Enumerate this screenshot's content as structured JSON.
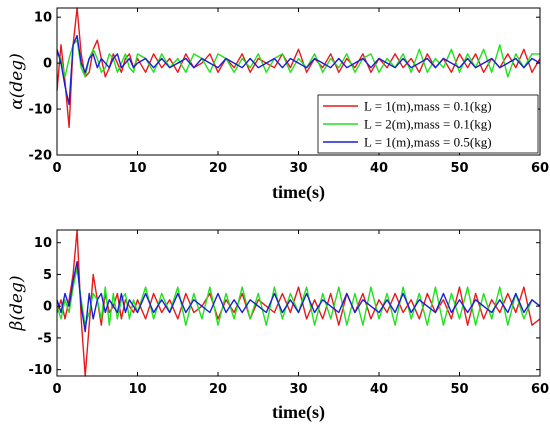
{
  "chart_data": [
    {
      "type": "line",
      "ylabel": "α(deg)",
      "xlabel": "time(s)",
      "xlim": [
        0,
        60
      ],
      "ylim": [
        -20,
        12
      ],
      "xticks": [
        0,
        10,
        20,
        30,
        40,
        50,
        60
      ],
      "yticks": [
        -20,
        -10,
        0,
        10
      ],
      "legend_position": "inside-lower-right",
      "grid": false,
      "series": [
        {
          "name": "L = 1(m),mass = 0.1(kg)",
          "color": "#e8191b",
          "x": [
            0,
            0.5,
            1,
            1.5,
            2,
            2.5,
            3,
            3.5,
            4,
            4.5,
            5,
            5.5,
            6,
            6.5,
            7,
            7.5,
            8,
            8.5,
            9,
            9.5,
            10,
            11,
            12,
            13,
            14,
            15,
            16,
            17,
            18,
            19,
            20,
            21,
            22,
            23,
            24,
            25,
            26,
            27,
            28,
            29,
            30,
            31,
            32,
            33,
            34,
            35,
            36,
            37,
            38,
            39,
            40,
            41,
            42,
            43,
            44,
            45,
            46,
            47,
            48,
            49,
            50,
            51,
            52,
            53,
            54,
            55,
            56,
            57,
            58,
            59,
            60
          ],
          "y": [
            -6,
            4,
            -4,
            -14,
            4,
            12,
            2,
            -3,
            -2,
            3,
            5,
            1,
            -3,
            -1,
            2,
            0,
            -2,
            1,
            2,
            -1,
            1,
            -2,
            2,
            -1,
            1,
            -2,
            2,
            -1,
            0,
            2,
            -2,
            1,
            -1,
            2,
            -2,
            1,
            0,
            -1,
            2,
            -1,
            3,
            -2,
            1,
            -1,
            2,
            -2,
            1,
            -1,
            2,
            -2,
            1,
            -1,
            2,
            -1,
            1,
            -2,
            2,
            -1,
            1,
            -2,
            2,
            -1,
            2,
            -2,
            1,
            -1,
            2,
            -1,
            3,
            -2,
            1
          ]
        },
        {
          "name": "L = 2(m),mass = 0.1(kg)",
          "color": "#22e01e",
          "x": [
            0,
            0.5,
            1,
            1.5,
            2,
            2.5,
            3,
            3.5,
            4,
            4.5,
            5,
            5.5,
            6,
            6.5,
            7,
            7.5,
            8,
            8.5,
            9,
            9.5,
            10,
            11,
            12,
            13,
            14,
            15,
            16,
            17,
            18,
            19,
            20,
            21,
            22,
            23,
            24,
            25,
            26,
            27,
            28,
            29,
            30,
            31,
            32,
            33,
            34,
            35,
            36,
            37,
            38,
            39,
            40,
            41,
            42,
            43,
            44,
            45,
            46,
            47,
            48,
            49,
            50,
            51,
            52,
            53,
            54,
            55,
            56,
            57,
            58,
            59,
            60
          ],
          "y": [
            2,
            1,
            -3,
            1,
            4,
            5,
            -1,
            -3,
            1,
            3,
            1,
            -2,
            -1,
            2,
            1,
            -2,
            0,
            2,
            -1,
            -2,
            2,
            1,
            -2,
            2,
            -1,
            1,
            -2,
            2,
            1,
            -2,
            2,
            1,
            -2,
            1,
            -1,
            2,
            -2,
            1,
            2,
            -2,
            1,
            -1,
            2,
            -2,
            1,
            -1,
            2,
            -2,
            1,
            2,
            -2,
            1,
            -1,
            2,
            -2,
            3,
            -2,
            1,
            -1,
            3,
            -2,
            2,
            -1,
            3,
            -2,
            4,
            -3,
            2,
            -1,
            2,
            2
          ]
        },
        {
          "name": "L = 1(m),mass = 0.5(kg)",
          "color": "#1a1fd6",
          "x": [
            0,
            0.5,
            1,
            1.5,
            2,
            2.5,
            3,
            3.5,
            4,
            4.5,
            5,
            5.5,
            6,
            6.5,
            7,
            7.5,
            8,
            8.5,
            9,
            9.5,
            10,
            11,
            12,
            13,
            14,
            15,
            16,
            17,
            18,
            19,
            20,
            21,
            22,
            23,
            24,
            25,
            26,
            27,
            28,
            29,
            30,
            31,
            32,
            33,
            34,
            35,
            36,
            37,
            38,
            39,
            40,
            41,
            42,
            43,
            44,
            45,
            46,
            47,
            48,
            49,
            50,
            51,
            52,
            53,
            54,
            55,
            56,
            57,
            58,
            59,
            60
          ],
          "y": [
            3,
            0,
            -5,
            -9,
            4,
            6,
            0,
            -2,
            1,
            2,
            -1,
            1,
            0,
            -1,
            1,
            2,
            -1,
            0,
            1,
            -1,
            0,
            1,
            -1,
            1,
            -1,
            0,
            1,
            -1,
            1,
            0,
            -1,
            1,
            0,
            -1,
            1,
            -1,
            0,
            1,
            -1,
            1,
            0,
            -1,
            1,
            0,
            -1,
            1,
            -1,
            0,
            1,
            -1,
            1,
            0,
            -1,
            1,
            -1,
            0,
            1,
            -1,
            1,
            0,
            -1,
            1,
            -1,
            0,
            1,
            -1,
            0,
            1,
            -1,
            1,
            0
          ]
        }
      ]
    },
    {
      "type": "line",
      "ylabel": "β(deg)",
      "xlabel": "time(s)",
      "xlim": [
        0,
        60
      ],
      "ylim": [
        -11,
        12
      ],
      "xticks": [
        0,
        10,
        20,
        30,
        40,
        50,
        60
      ],
      "yticks": [
        -10,
        -5,
        0,
        5,
        10
      ],
      "grid": false,
      "series": [
        {
          "name": "L = 1(m),mass = 0.1(kg)",
          "color": "#e8191b",
          "x": [
            0,
            0.5,
            1,
            1.5,
            2,
            2.5,
            3,
            3.5,
            4,
            4.5,
            5,
            5.5,
            6,
            6.5,
            7,
            7.5,
            8,
            8.5,
            9,
            9.5,
            10,
            11,
            12,
            13,
            14,
            15,
            16,
            17,
            18,
            19,
            20,
            21,
            22,
            23,
            24,
            25,
            26,
            27,
            28,
            29,
            30,
            31,
            32,
            33,
            34,
            35,
            36,
            37,
            38,
            39,
            40,
            41,
            42,
            43,
            44,
            45,
            46,
            47,
            48,
            49,
            50,
            51,
            52,
            53,
            54,
            55,
            56,
            57,
            58,
            59,
            60
          ],
          "y": [
            -1,
            1,
            -2,
            1,
            5,
            12,
            -2,
            -11,
            -3,
            5,
            1,
            -3,
            2,
            -1,
            0,
            2,
            -2,
            1,
            0,
            -1,
            1,
            -2,
            2,
            -1,
            1,
            -2,
            2,
            -1,
            0,
            2,
            -2,
            1,
            -1,
            2,
            -2,
            1,
            0,
            -1,
            2,
            -1,
            3,
            -2,
            1,
            -2,
            2,
            -3,
            2,
            -1,
            2,
            -2,
            1,
            -1,
            2,
            -1,
            1,
            -2,
            2,
            -1,
            1,
            -2,
            3,
            -3,
            2,
            -2,
            1,
            -1,
            2,
            -1,
            3,
            -3,
            -2
          ]
        },
        {
          "name": "L = 2(m),mass = 0.1(kg)",
          "color": "#22e01e",
          "x": [
            0,
            0.5,
            1,
            1.5,
            2,
            2.5,
            3,
            3.5,
            4,
            4.5,
            5,
            5.5,
            6,
            6.5,
            7,
            7.5,
            8,
            8.5,
            9,
            9.5,
            10,
            11,
            12,
            13,
            14,
            15,
            16,
            17,
            18,
            19,
            20,
            21,
            22,
            23,
            24,
            25,
            26,
            27,
            28,
            29,
            30,
            31,
            32,
            33,
            34,
            35,
            36,
            37,
            38,
            39,
            40,
            41,
            42,
            43,
            44,
            45,
            46,
            47,
            48,
            49,
            50,
            51,
            52,
            53,
            54,
            55,
            56,
            57,
            58,
            59,
            60
          ],
          "y": [
            0,
            -2,
            1,
            -1,
            3,
            6,
            1,
            -3,
            -1,
            2,
            1,
            -2,
            3,
            -3,
            2,
            -2,
            1,
            2,
            -2,
            1,
            -1,
            3,
            -2,
            2,
            -1,
            3,
            -3,
            2,
            -2,
            3,
            -3,
            2,
            -2,
            3,
            -2,
            2,
            -3,
            3,
            -2,
            2,
            -1,
            3,
            -3,
            2,
            -2,
            3,
            -3,
            2,
            -3,
            3,
            -2,
            2,
            -3,
            3,
            -2,
            2,
            -3,
            3,
            -3,
            2,
            -2,
            3,
            -3,
            2,
            -2,
            3,
            -3,
            2,
            -2,
            1,
            0
          ]
        },
        {
          "name": "L = 1(m),mass = 0.5(kg)",
          "color": "#1a1fd6",
          "x": [
            0,
            0.5,
            1,
            1.5,
            2,
            2.5,
            3,
            3.5,
            4,
            4.5,
            5,
            5.5,
            6,
            6.5,
            7,
            7.5,
            8,
            8.5,
            9,
            9.5,
            10,
            11,
            12,
            13,
            14,
            15,
            16,
            17,
            18,
            19,
            20,
            21,
            22,
            23,
            24,
            25,
            26,
            27,
            28,
            29,
            30,
            31,
            32,
            33,
            34,
            35,
            36,
            37,
            38,
            39,
            40,
            41,
            42,
            43,
            44,
            45,
            46,
            47,
            48,
            49,
            50,
            51,
            52,
            53,
            54,
            55,
            56,
            57,
            58,
            59,
            60
          ],
          "y": [
            1,
            -1,
            2,
            0,
            4,
            7,
            0,
            -4,
            2,
            -2,
            1,
            2,
            -1,
            1,
            0,
            -1,
            2,
            -1,
            1,
            0,
            -1,
            2,
            -1,
            1,
            -1,
            2,
            -1,
            1,
            0,
            -1,
            2,
            -1,
            1,
            -1,
            1,
            0,
            -1,
            2,
            -1,
            1,
            -1,
            2,
            -1,
            1,
            0,
            -1,
            2,
            -1,
            1,
            0,
            -1,
            1,
            -1,
            2,
            -1,
            1,
            0,
            -1,
            2,
            -1,
            1,
            -1,
            1,
            0,
            -1,
            1,
            -1,
            2,
            -1,
            1,
            0
          ]
        }
      ]
    }
  ]
}
